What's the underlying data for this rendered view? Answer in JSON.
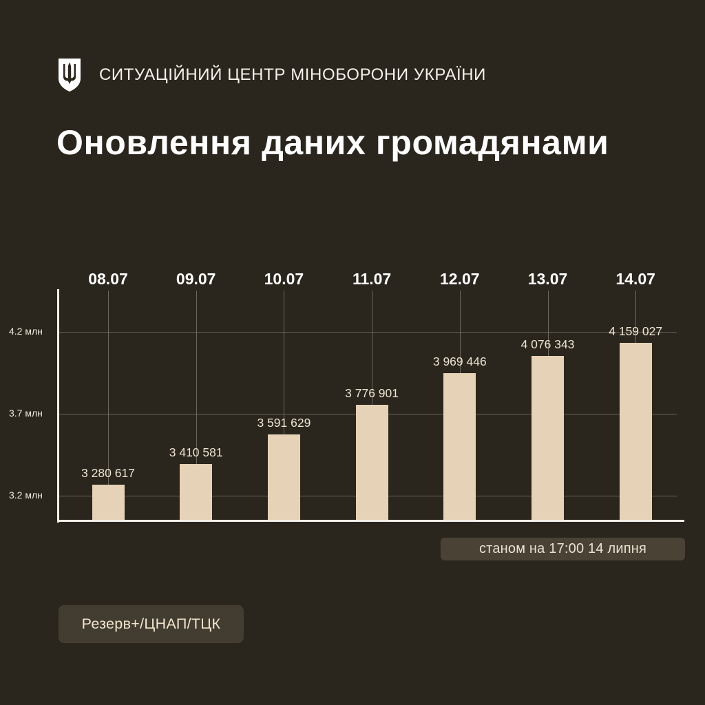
{
  "header": {
    "emblem_icon": "trident-shield-icon",
    "organization": "СИТУАЦІЙНИЙ ЦЕНТР МІНОБОРОНИ УКРАЇНИ",
    "title": "Оновлення даних громадянами"
  },
  "colors": {
    "background": "#2b261d",
    "bar": "#e6d2b7",
    "text": "#ffffff",
    "value_label": "#ece4d2",
    "grid": "#6b6357",
    "axis": "#f2efe8",
    "stamp_bg": "#4a4335",
    "source_bg": "#433c30"
  },
  "chart_data": {
    "type": "bar",
    "title": "Оновлення даних громадянами",
    "xlabel": "",
    "ylabel": "",
    "categories": [
      "08.07",
      "09.07",
      "10.07",
      "11.07",
      "12.07",
      "13.07",
      "14.07"
    ],
    "values": [
      3280617,
      3410581,
      3591629,
      3776901,
      3969446,
      4076343,
      4159027
    ],
    "value_labels": [
      "3 280 617",
      "3 410 581",
      "3 591 629",
      "3 776 901",
      "3 969 446",
      "4 076 343",
      "4 159 027"
    ],
    "y_ticks": [
      {
        "value": 4200000,
        "label": "4.2 млн"
      },
      {
        "value": 3700000,
        "label": "3.7 млн"
      },
      {
        "value": 3200000,
        "label": "3.2 млн"
      }
    ],
    "ylim": [
      3050000,
      4450000
    ],
    "grid": true,
    "category_labels_position": "top",
    "legend": null
  },
  "footer": {
    "timestamp_note": "станом на 17:00 14 липня",
    "source": "Резерв+/ЦНАП/ТЦК"
  }
}
